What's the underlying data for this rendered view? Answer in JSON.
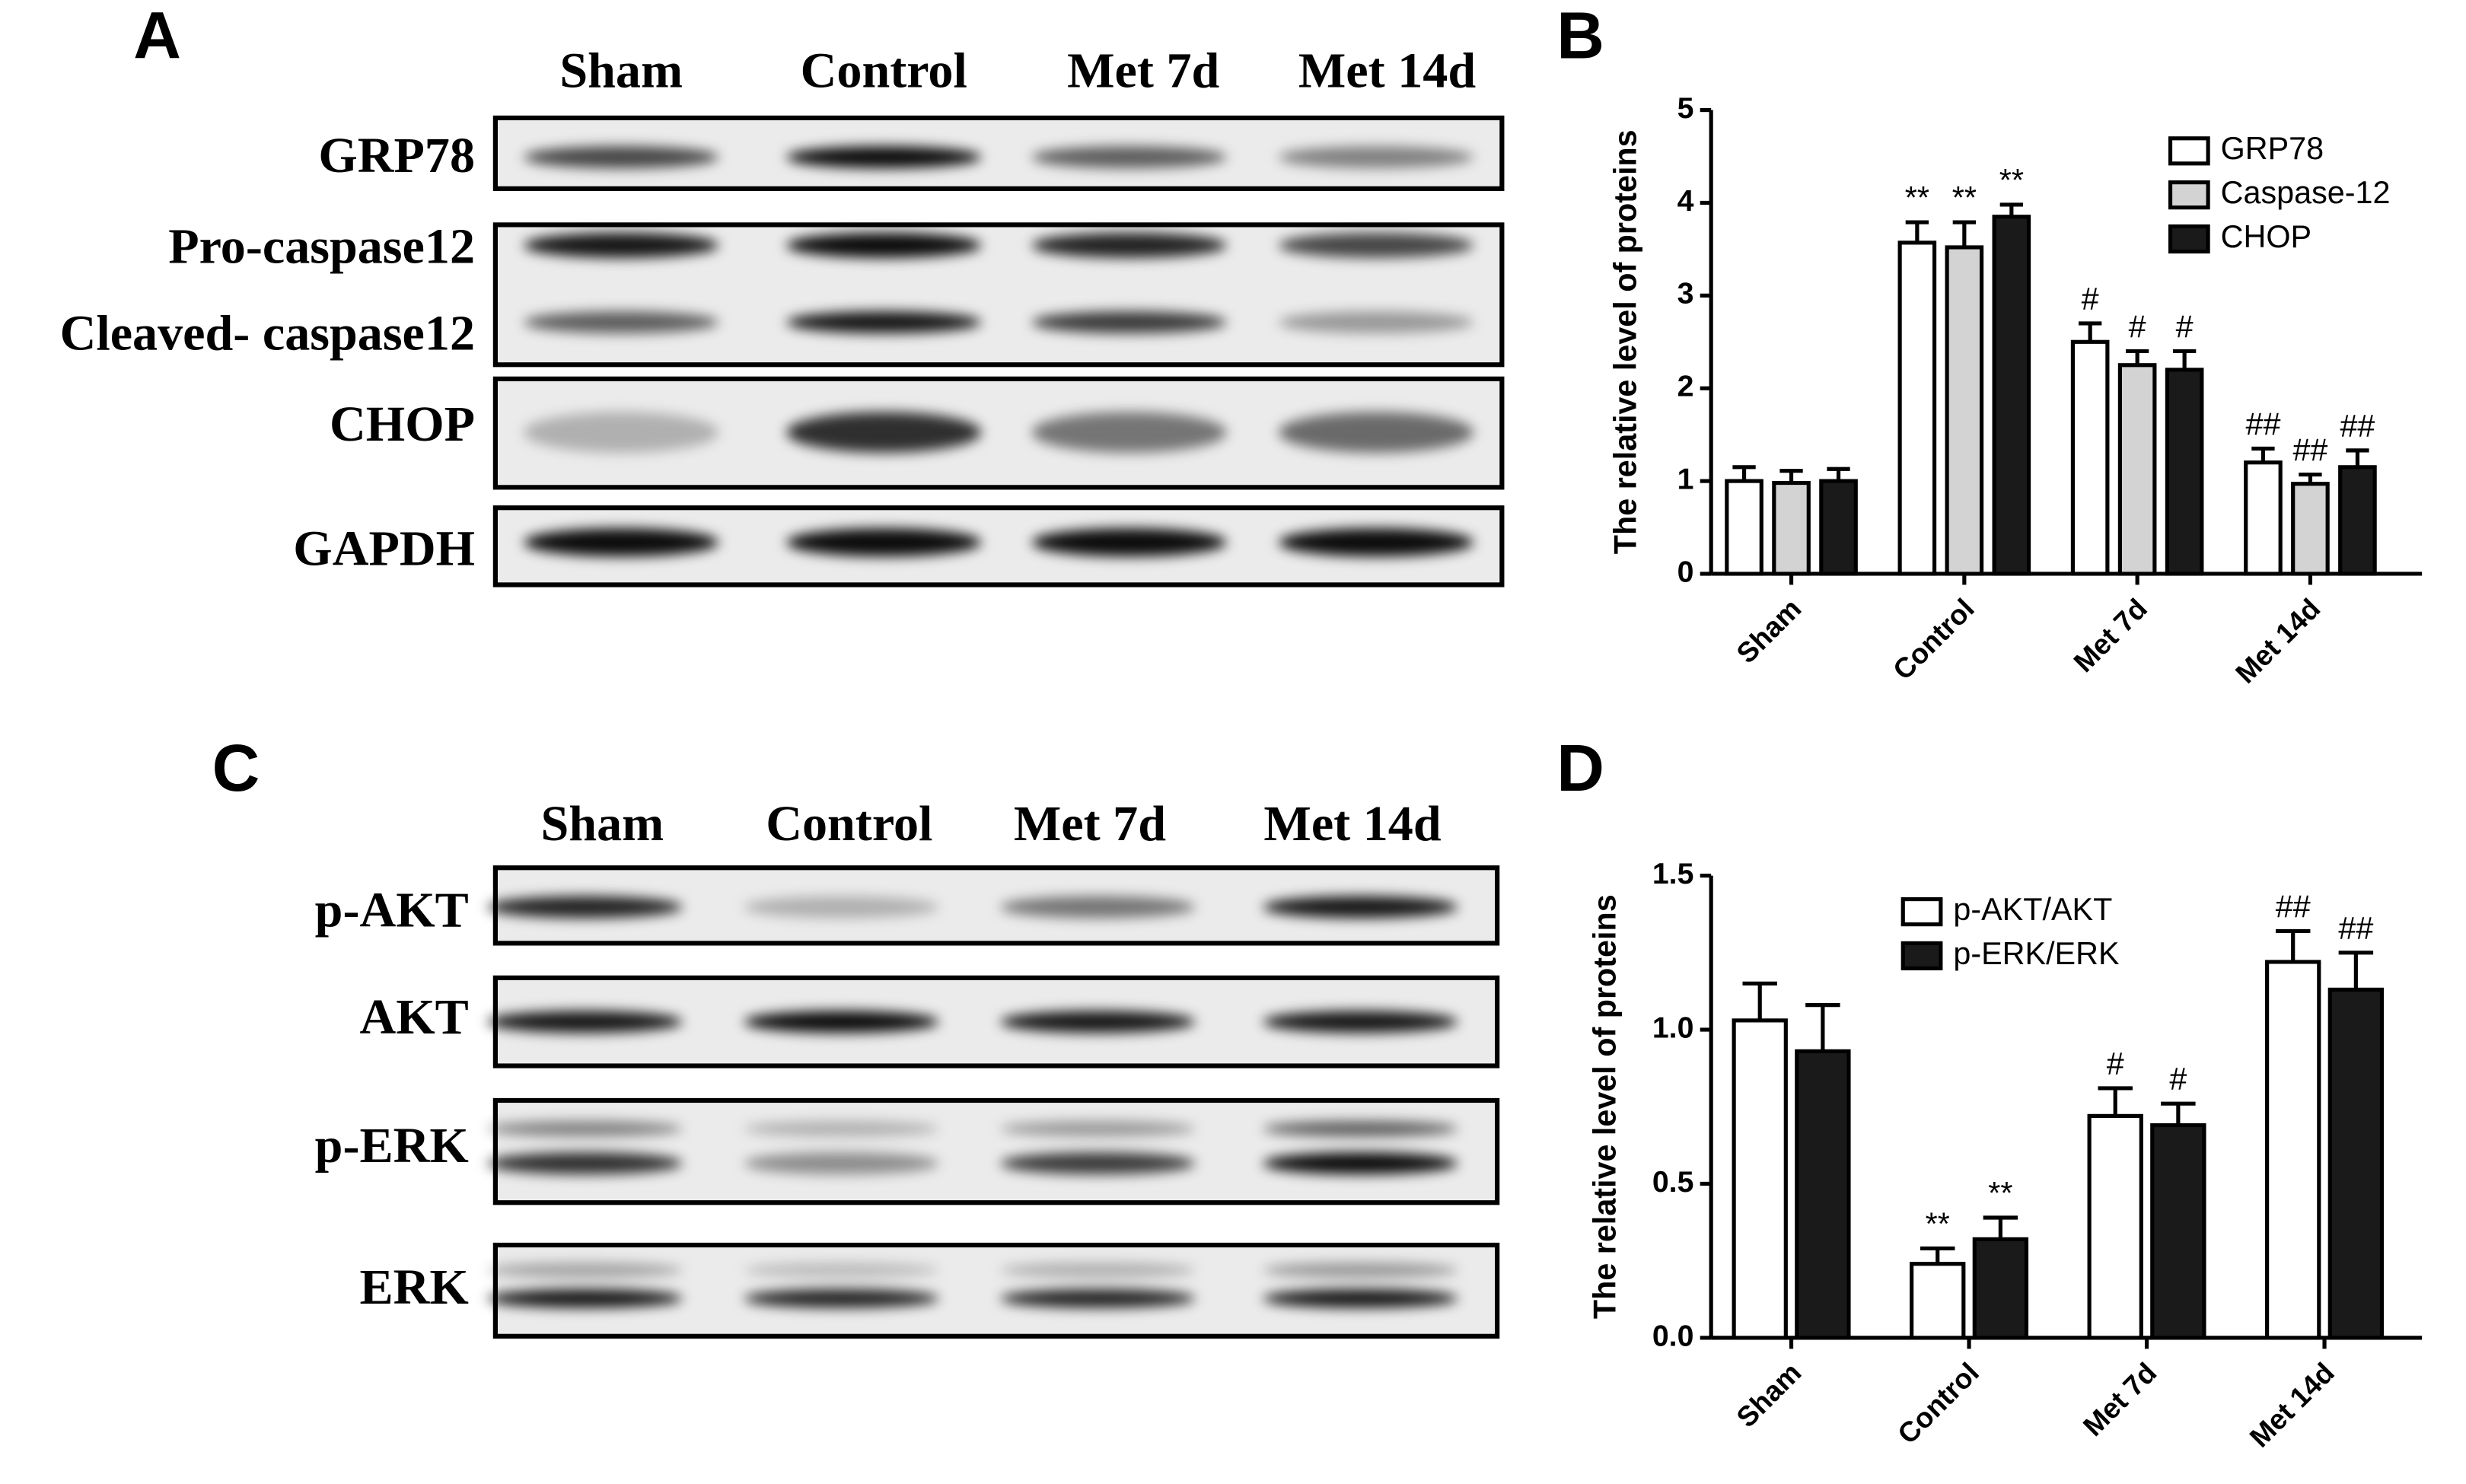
{
  "panels": [
    {
      "letter": "A",
      "lanes": [
        "Sham",
        "Control",
        "Met 7d",
        "Met 14d"
      ],
      "rows": [
        "GRP78",
        "Pro-caspase12",
        "Cleaved- caspase12",
        "CHOP",
        "GAPDH"
      ]
    },
    {
      "letter": "B"
    },
    {
      "letter": "C",
      "lanes": [
        "Sham",
        "Control",
        "Met 7d",
        "Met 14d"
      ],
      "rows": [
        "p-AKT",
        "AKT",
        "p-ERK",
        "ERK"
      ]
    },
    {
      "letter": "D"
    }
  ],
  "chart_data": [
    {
      "type": "bar",
      "y_label": "The relative level of proteins",
      "categories": [
        "Sham",
        "Control",
        "Met 7d",
        "Met 14d"
      ],
      "ylim": [
        0,
        5
      ],
      "yticks": [
        0,
        1,
        2,
        3,
        4,
        5
      ],
      "legend": "top-right",
      "series": [
        {
          "name": "GRP78",
          "color": "#ffffff",
          "values": [
            1.0,
            3.57,
            2.5,
            1.2
          ],
          "errors": [
            0.15,
            0.22,
            0.2,
            0.15
          ],
          "annotations": [
            null,
            "**",
            "#",
            "##"
          ]
        },
        {
          "name": "Caspase-12",
          "color": "#d3d3d3",
          "values": [
            0.98,
            3.52,
            2.25,
            0.97
          ],
          "errors": [
            0.13,
            0.27,
            0.15,
            0.1
          ],
          "annotations": [
            null,
            "**",
            "#",
            "##"
          ]
        },
        {
          "name": "CHOP",
          "color": "#1a1a1a",
          "values": [
            1.0,
            3.85,
            2.2,
            1.15
          ],
          "errors": [
            0.13,
            0.13,
            0.2,
            0.18
          ],
          "annotations": [
            null,
            "**",
            "#",
            "##"
          ]
        }
      ]
    },
    {
      "type": "bar",
      "y_label": "The relative level of proteins",
      "categories": [
        "Sham",
        "Control",
        "Met 7d",
        "Met 14d"
      ],
      "ylim": [
        0,
        1.5
      ],
      "yticks": [
        {
          "value": 0,
          "label": "0.0"
        },
        0.5,
        {
          "value": 1,
          "label": "1.0"
        },
        1.5
      ],
      "legend": "top-right",
      "series": [
        {
          "name": "p-AKT/AKT",
          "color": "#ffffff",
          "values": [
            1.03,
            0.24,
            0.72,
            1.22
          ],
          "errors": [
            0.12,
            0.05,
            0.09,
            0.1
          ],
          "annotations": [
            null,
            "**",
            "#",
            "##"
          ]
        },
        {
          "name": "p-ERK/ERK",
          "color": "#1a1a1a",
          "values": [
            0.93,
            0.32,
            0.69,
            1.13
          ],
          "errors": [
            0.15,
            0.07,
            0.07,
            0.12
          ],
          "annotations": [
            null,
            "**",
            "#",
            "##"
          ]
        }
      ]
    }
  ]
}
